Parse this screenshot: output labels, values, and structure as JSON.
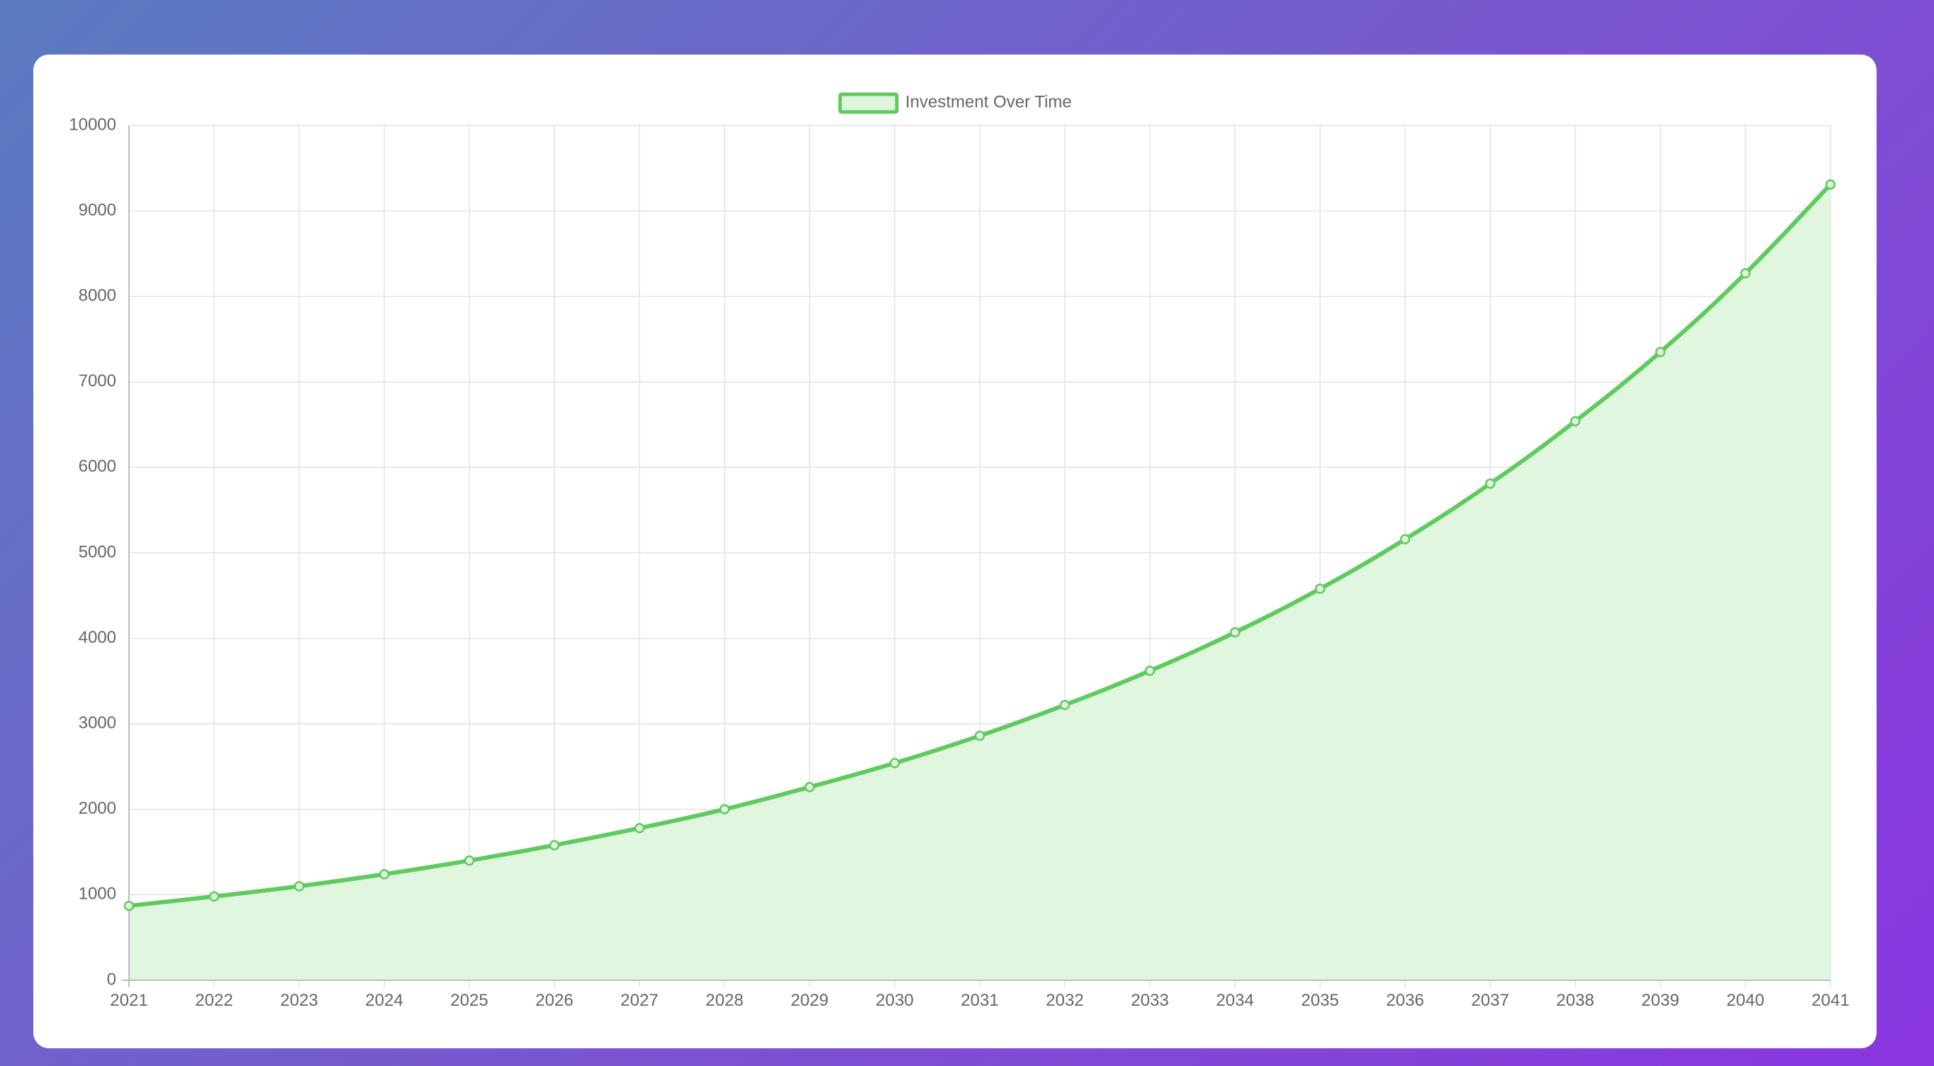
{
  "chart_data": {
    "type": "line",
    "fill": true,
    "title": "",
    "xlabel": "",
    "ylabel": "",
    "x": [
      "2021",
      "2022",
      "2023",
      "2024",
      "2025",
      "2026",
      "2027",
      "2028",
      "2029",
      "2030",
      "2031",
      "2032",
      "2033",
      "2034",
      "2035",
      "2036",
      "2037",
      "2038",
      "2039",
      "2040",
      "2041"
    ],
    "yticks": [
      0,
      1000,
      2000,
      3000,
      4000,
      5000,
      6000,
      7000,
      8000,
      9000,
      10000
    ],
    "ylim": [
      0,
      10000
    ],
    "grid": true,
    "legend_position": "top-center",
    "series": [
      {
        "name": "Investment Over Time",
        "color": "#5fcb5f",
        "fill_color": "#dff5dc",
        "values": [
          870,
          980,
          1100,
          1240,
          1400,
          1580,
          1780,
          2000,
          2260,
          2540,
          2860,
          3220,
          3620,
          4070,
          4580,
          5160,
          5810,
          6540,
          7350,
          8270,
          9310
        ]
      }
    ]
  }
}
